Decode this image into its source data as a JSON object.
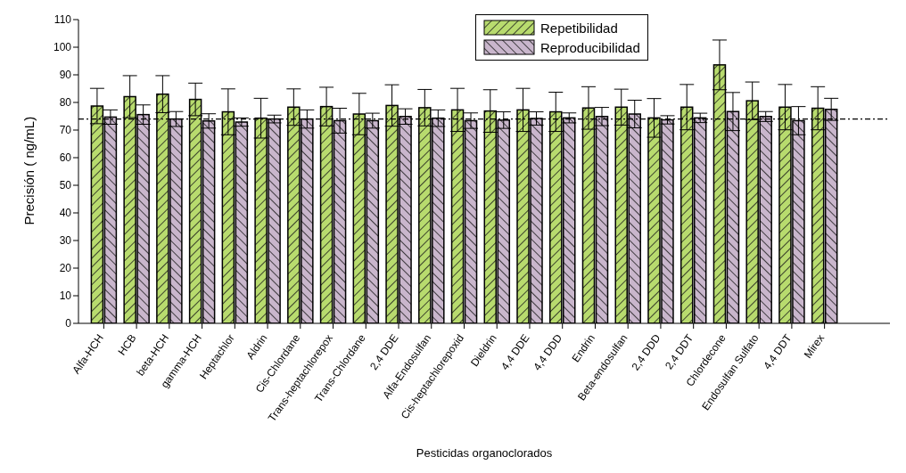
{
  "chart_data": {
    "type": "bar",
    "xlabel": "Pesticidas organoclorados",
    "ylabel": "Precisión ( ng/mL)",
    "categories": [
      "Alfa-HCH",
      "HCB",
      "beta-HCH",
      "gamma-HCH",
      "Heptachlor",
      "Aldrin",
      "Cis-Chlordane",
      "Trans-heptachlorepox",
      "Trans-Chlordane",
      "2,4 DDE",
      "Alfa-Endosulfan",
      "Cis-heptachlorepoxid",
      "Dieldrin",
      "4,4 DDE",
      "4,4 DDD",
      "Endrin",
      "Beta-endosulfan",
      "2,4 DDD",
      "2,4 DDT",
      "Chlordecone",
      "Endosulfan Sulfato",
      "4,4 DDT",
      "Mirex"
    ],
    "series": [
      {
        "name": "Repetibilidad",
        "color": "#b8db6e",
        "values": [
          78.7,
          82.1,
          83.0,
          81.1,
          76.6,
          74.3,
          78.3,
          78.5,
          75.8,
          78.9,
          78.1,
          77.3,
          76.9,
          77.3,
          76.6,
          78.0,
          78.3,
          74.4,
          78.3,
          93.6,
          80.6,
          78.3,
          77.9
        ],
        "errors": [
          6.4,
          7.6,
          6.7,
          5.9,
          8.3,
          7.2,
          6.6,
          7.0,
          7.5,
          7.5,
          6.6,
          7.8,
          7.7,
          7.8,
          7.1,
          7.7,
          6.5,
          7.0,
          8.2,
          9.0,
          6.8,
          8.2,
          7.8
        ]
      },
      {
        "name": "Reproducibilidad",
        "color": "#c9b6cc",
        "values": [
          74.7,
          75.6,
          74.0,
          73.3,
          72.9,
          74.0,
          74.0,
          73.4,
          73.4,
          74.9,
          74.3,
          73.4,
          73.6,
          74.2,
          74.4,
          74.9,
          75.8,
          73.7,
          74.4,
          76.7,
          74.9,
          73.4,
          77.5
        ],
        "errors": [
          2.6,
          3.5,
          2.7,
          2.6,
          1.5,
          1.4,
          3.3,
          4.5,
          2.7,
          2.8,
          3.0,
          2.8,
          3.0,
          2.4,
          1.8,
          3.3,
          5.0,
          1.5,
          1.7,
          6.9,
          1.8,
          5.1,
          4.0
        ]
      }
    ],
    "ylim": [
      0,
      110
    ],
    "yticks": [
      0,
      10,
      20,
      30,
      40,
      50,
      60,
      70,
      80,
      90,
      100,
      110
    ],
    "ref_lines": [
      {
        "axis": "y",
        "value": 74,
        "color": "#000000",
        "line_style": "dashdot"
      }
    ],
    "grid": false,
    "legend": "top right"
  }
}
